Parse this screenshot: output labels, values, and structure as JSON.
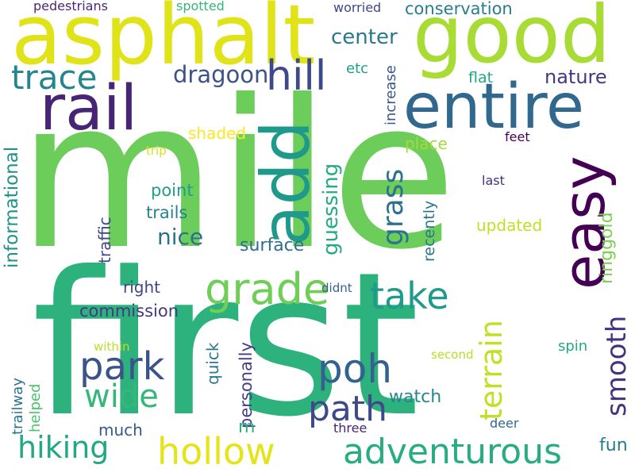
{
  "background": "#ffffff",
  "words": [
    {
      "text": "mile",
      "color": "#6ccd5a"
    },
    {
      "text": "first",
      "color": "#2db27d"
    },
    {
      "text": "asphalt",
      "color": "#dfe318"
    },
    {
      "text": "good",
      "color": "#a8db34"
    },
    {
      "text": "rail",
      "color": "#482475"
    },
    {
      "text": "entire",
      "color": "#31688e"
    },
    {
      "text": "add",
      "color": "#1f9a8a"
    },
    {
      "text": "easy",
      "color": "#440154"
    },
    {
      "text": "grade",
      "color": "#6ece58"
    },
    {
      "text": "hill",
      "color": "#3e4989"
    },
    {
      "text": "trace",
      "color": "#25858e"
    },
    {
      "text": "dragoon",
      "color": "#3b528b"
    },
    {
      "text": "center",
      "color": "#2a788e"
    },
    {
      "text": "conservation",
      "color": "#287d8e"
    },
    {
      "text": "pedestrians",
      "color": "#482878"
    },
    {
      "text": "spotted",
      "color": "#35b779"
    },
    {
      "text": "worried",
      "color": "#414487"
    },
    {
      "text": "increase",
      "color": "#39558c"
    },
    {
      "text": "etc",
      "color": "#1fa088"
    },
    {
      "text": "nature",
      "color": "#453781"
    },
    {
      "text": "flat",
      "color": "#22a785"
    },
    {
      "text": "informational",
      "color": "#21918c"
    },
    {
      "text": "shaded",
      "color": "#fde725"
    },
    {
      "text": "trip",
      "color": "#d8e219"
    },
    {
      "text": "grass",
      "color": "#2c728e"
    },
    {
      "text": "guessing",
      "color": "#25ab82"
    },
    {
      "text": "place",
      "color": "#a5db36"
    },
    {
      "text": "feet",
      "color": "#440154"
    },
    {
      "text": "last",
      "color": "#472d7b"
    },
    {
      "text": "recently",
      "color": "#2a768e"
    },
    {
      "text": "ringgold",
      "color": "#7ad151"
    },
    {
      "text": "point",
      "color": "#1f9e89"
    },
    {
      "text": "trails",
      "color": "#26828e"
    },
    {
      "text": "traffic",
      "color": "#3f4788"
    },
    {
      "text": "nice",
      "color": "#2d708e"
    },
    {
      "text": "surface",
      "color": "#2e6f8e"
    },
    {
      "text": "updated",
      "color": "#c0df25"
    },
    {
      "text": "take",
      "color": "#1e9b8a"
    },
    {
      "text": "right",
      "color": "#404688"
    },
    {
      "text": "commission",
      "color": "#443983"
    },
    {
      "text": "didnt",
      "color": "#355f8d"
    },
    {
      "text": "terrain",
      "color": "#c2df23"
    },
    {
      "text": "smooth",
      "color": "#46327e"
    },
    {
      "text": "park",
      "color": "#3b528b"
    },
    {
      "text": "poh",
      "color": "#34618d"
    },
    {
      "text": "wide",
      "color": "#35b779"
    },
    {
      "text": "path",
      "color": "#3e4989"
    },
    {
      "text": "personally",
      "color": "#433e85"
    },
    {
      "text": "quick",
      "color": "#2a788e"
    },
    {
      "text": "within",
      "color": "#bddf26"
    },
    {
      "text": "second",
      "color": "#b5de2b"
    },
    {
      "text": "spin",
      "color": "#24aa83"
    },
    {
      "text": "trailway",
      "color": "#2c728e"
    },
    {
      "text": "helped",
      "color": "#4ac16d"
    },
    {
      "text": "watch",
      "color": "#24868e"
    },
    {
      "text": "much",
      "color": "#38598c"
    },
    {
      "text": "three",
      "color": "#482576"
    },
    {
      "text": "deer",
      "color": "#31688e"
    },
    {
      "text": "hiking",
      "color": "#22a884"
    },
    {
      "text": "hollow",
      "color": "#e5e419"
    },
    {
      "text": "adventurous",
      "color": "#27ad81"
    },
    {
      "text": "fun",
      "color": "#2a788e"
    },
    {
      "text": "m",
      "color": "#2db27d"
    }
  ]
}
